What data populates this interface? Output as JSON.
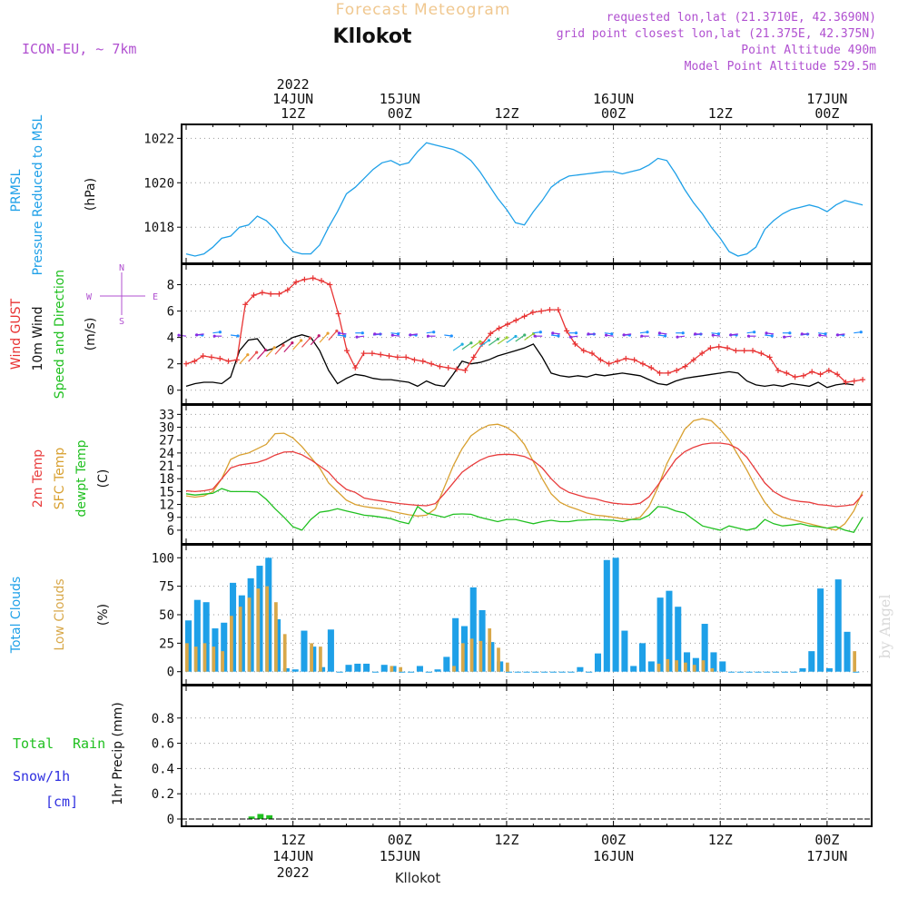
{
  "header": {
    "title": "Forecast Meteogram",
    "location": "Kllokot",
    "model": "ICON-EU, ~ 7km",
    "requested": "requested lon,lat (21.3710E, 42.3690N)",
    "gridpoint": "grid point closest lon,lat (21.375E, 42.375N)",
    "point_alt": "Point Altitude 490m",
    "model_alt": "Model Point Altitude 529.5m",
    "footer": "Kllokot",
    "watermark": "by Angel"
  },
  "colors": {
    "pressure": "#1ea0e8",
    "gust": "#e83232",
    "wind": "#000000",
    "temp": "#e83c3c",
    "sfc": "#d8a030",
    "dew": "#20c020",
    "total_clouds": "#1ea0e8",
    "low_clouds": "#d8a84a",
    "rain": "#20c020",
    "purple": "#b050d0",
    "snow": "#3030e0"
  },
  "time_axis": {
    "top_labels": [
      {
        "t": 12,
        "lines": [
          "2022",
          "14JUN",
          "12Z"
        ]
      },
      {
        "t": 24,
        "lines": [
          "15JUN",
          "00Z"
        ]
      },
      {
        "t": 36,
        "lines": [
          "12Z"
        ]
      },
      {
        "t": 48,
        "lines": [
          "16JUN",
          "00Z"
        ]
      },
      {
        "t": 60,
        "lines": [
          "12Z"
        ]
      },
      {
        "t": 72,
        "lines": [
          "17JUN",
          "00Z"
        ]
      }
    ],
    "bottom_labels": [
      {
        "t": 12,
        "lines": [
          "12Z",
          "14JUN",
          "2022"
        ]
      },
      {
        "t": 24,
        "lines": [
          "00Z",
          "15JUN"
        ]
      },
      {
        "t": 36,
        "lines": [
          "12Z"
        ]
      },
      {
        "t": 48,
        "lines": [
          "00Z",
          "16JUN"
        ]
      },
      {
        "t": 60,
        "lines": [
          "12Z"
        ]
      },
      {
        "t": 72,
        "lines": [
          "00Z",
          "17JUN"
        ]
      }
    ]
  },
  "panel_labels": {
    "pressure": [
      "PRMSL",
      "Pressure Reduced to MSL",
      "(hPa)"
    ],
    "wind": [
      "Wind GUST",
      "10m Wind",
      "Speed and Direction",
      "(m/s)"
    ],
    "compass": {
      "n": "N",
      "s": "S",
      "w": "W",
      "e": "E"
    },
    "temp": [
      "2m Temp",
      "SFC Temp",
      "dewpt Temp",
      "(C)"
    ],
    "clouds": [
      "Total Clouds",
      "Low Clouds",
      "(%)"
    ],
    "precip": [
      "Total",
      "Rain",
      "Snow/1h",
      "[cm]",
      "1hr Precip (mm)"
    ]
  },
  "chart_data": [
    {
      "type": "line",
      "name": "PRMSL",
      "ylabel": "(hPa)",
      "ylim": [
        1016.7,
        1022.3
      ],
      "yticks": [
        1018,
        1020,
        1022
      ],
      "x_hours": [
        0,
        1,
        2,
        3,
        4,
        5,
        6,
        7,
        8,
        9,
        10,
        11,
        12,
        13,
        14,
        15,
        16,
        17,
        18,
        19,
        20,
        21,
        22,
        23,
        24,
        25,
        26,
        27,
        28,
        29,
        30,
        31,
        32,
        33,
        34,
        35,
        36,
        37,
        38,
        39,
        40,
        41,
        42,
        43,
        44,
        45,
        46,
        47,
        48,
        49,
        50,
        51,
        52,
        53,
        54,
        55,
        56,
        57,
        58,
        59,
        60,
        61,
        62,
        63,
        64,
        65,
        66,
        67,
        68,
        69,
        70,
        71,
        72,
        73,
        74,
        75,
        76
      ],
      "values": [
        1016.8,
        1016.7,
        1016.8,
        1017.1,
        1017.5,
        1017.6,
        1018.0,
        1018.1,
        1018.5,
        1018.3,
        1017.9,
        1017.3,
        1016.9,
        1016.8,
        1016.8,
        1017.2,
        1018.0,
        1018.7,
        1019.5,
        1019.8,
        1020.2,
        1020.6,
        1020.9,
        1021.0,
        1020.8,
        1020.9,
        1021.4,
        1021.8,
        1021.7,
        1021.6,
        1021.5,
        1021.3,
        1021.0,
        1020.5,
        1019.9,
        1019.3,
        1018.8,
        1018.2,
        1018.1,
        1018.7,
        1019.2,
        1019.8,
        1020.1,
        1020.3,
        1020.35,
        1020.4,
        1020.45,
        1020.5,
        1020.5,
        1020.4,
        1020.5,
        1020.6,
        1020.8,
        1021.1,
        1021.0,
        1020.4,
        1019.7,
        1019.1,
        1018.6,
        1018.0,
        1017.5,
        1016.9,
        1016.7,
        1016.8,
        1017.1,
        1017.9,
        1018.3,
        1018.6,
        1018.8,
        1018.9,
        1019.0,
        1018.9,
        1018.7,
        1019.0,
        1019.2,
        1019.1,
        1019.0
      ]
    },
    {
      "type": "line",
      "name": "Wind",
      "ylabel": "(m/s)",
      "ylim": [
        -0.5,
        9.0
      ],
      "yticks": [
        0,
        2,
        4,
        6,
        8
      ],
      "gust": [
        2.0,
        2.2,
        2.6,
        2.5,
        2.4,
        2.2,
        2.3,
        6.5,
        7.2,
        7.4,
        7.3,
        7.3,
        7.6,
        8.2,
        8.4,
        8.5,
        8.3,
        8.0,
        5.8,
        3.0,
        1.7,
        2.8,
        2.8,
        2.7,
        2.6,
        2.5,
        2.5,
        2.3,
        2.2,
        2.0,
        1.8,
        1.7,
        1.6,
        1.5,
        2.5,
        3.5,
        4.3,
        4.7,
        5.0,
        5.3,
        5.6,
        5.9,
        6.0,
        6.1,
        6.1,
        4.5,
        3.5,
        3.0,
        2.8,
        2.3,
        2.0,
        2.2,
        2.4,
        2.3,
        2.0,
        1.7,
        1.3,
        1.3,
        1.5,
        1.8,
        2.3,
        2.8,
        3.2,
        3.3,
        3.2,
        3.0,
        3.0,
        3.0,
        2.8,
        2.5,
        1.5,
        1.3,
        1.0,
        1.1,
        1.4,
        1.2,
        1.5,
        1.2,
        0.6,
        0.7,
        0.8
      ],
      "wind": [
        0.3,
        0.5,
        0.6,
        0.6,
        0.5,
        1.0,
        3.0,
        3.8,
        3.9,
        3.0,
        3.2,
        3.6,
        4.0,
        4.2,
        4.0,
        3.0,
        1.5,
        0.5,
        0.9,
        1.2,
        1.1,
        0.9,
        0.8,
        0.8,
        0.7,
        0.6,
        0.3,
        0.7,
        0.4,
        0.3,
        1.2,
        2.2,
        2.0,
        2.1,
        2.3,
        2.6,
        2.8,
        3.0,
        3.2,
        3.5,
        2.5,
        1.3,
        1.1,
        1.0,
        1.1,
        1.0,
        1.2,
        1.1,
        1.2,
        1.3,
        1.2,
        1.1,
        0.8,
        0.5,
        0.4,
        0.7,
        0.9,
        1.0,
        1.1,
        1.2,
        1.3,
        1.4,
        1.3,
        0.7,
        0.4,
        0.3,
        0.4,
        0.3,
        0.5,
        0.4,
        0.3,
        0.6,
        0.2,
        0.4,
        0.5,
        0.4
      ],
      "x_hours_gust_step": 0.95
    },
    {
      "type": "line",
      "name": "Temperature",
      "ylabel": "(C)",
      "ylim": [
        4.5,
        33.5
      ],
      "yticks": [
        6,
        9,
        12,
        15,
        18,
        21,
        24,
        27,
        30,
        33
      ],
      "t2m": [
        15.2,
        15.0,
        15.2,
        15.6,
        18.0,
        20.5,
        21.2,
        21.5,
        21.8,
        22.5,
        23.5,
        24.2,
        24.3,
        23.6,
        22.4,
        21.0,
        19.5,
        17.2,
        15.5,
        14.8,
        13.5,
        13.1,
        12.8,
        12.5,
        12.2,
        12.0,
        11.8,
        11.7,
        12.2,
        14.5,
        17.0,
        19.5,
        21.0,
        22.3,
        23.2,
        23.6,
        23.7,
        23.6,
        23.2,
        22.2,
        20.5,
        18.0,
        16.0,
        14.8,
        14.2,
        13.6,
        13.3,
        12.7,
        12.3,
        12.1,
        12.0,
        12.3,
        13.8,
        16.5,
        19.5,
        22.5,
        24.3,
        25.3,
        26.0,
        26.3,
        26.3,
        26.0,
        25.0,
        23.0,
        20.0,
        17.0,
        15.0,
        13.8,
        13.0,
        12.7,
        12.5,
        12.0,
        11.8,
        11.5,
        11.7,
        12.0,
        14.3
      ],
      "sfc": [
        14.0,
        13.7,
        14.0,
        15.0,
        18.0,
        22.5,
        23.5,
        24.0,
        25.0,
        26.0,
        28.5,
        28.6,
        27.5,
        25.5,
        23.0,
        20.5,
        17.0,
        15.0,
        13.0,
        12.0,
        11.5,
        11.2,
        11.0,
        10.5,
        10.0,
        9.6,
        9.3,
        9.5,
        11.0,
        16.0,
        21.0,
        25.0,
        28.0,
        29.5,
        30.5,
        30.7,
        30.0,
        28.5,
        26.0,
        22.0,
        18.0,
        14.5,
        12.5,
        11.5,
        10.8,
        10.0,
        9.5,
        9.3,
        9.0,
        8.7,
        8.5,
        9.0,
        11.5,
        16.0,
        21.5,
        25.5,
        29.5,
        31.5,
        32.0,
        31.5,
        29.5,
        27.0,
        23.5,
        20.0,
        16.0,
        12.5,
        10.0,
        9.0,
        8.5,
        8.0,
        7.5,
        7.0,
        6.5,
        6.0,
        7.5,
        10.5,
        15.0
      ],
      "dew": [
        14.5,
        14.2,
        14.4,
        14.6,
        15.7,
        15.0,
        15.0,
        15.0,
        14.9,
        13.2,
        11.0,
        9.0,
        6.8,
        6.0,
        8.5,
        10.2,
        10.5,
        11.0,
        10.5,
        10.0,
        9.5,
        9.3,
        9.0,
        8.7,
        8.0,
        7.5,
        11.5,
        10.0,
        9.5,
        9.0,
        9.7,
        9.8,
        9.7,
        9.0,
        8.5,
        8.0,
        8.5,
        8.5,
        8.0,
        7.5,
        8.0,
        8.3,
        8.0,
        8.0,
        8.3,
        8.4,
        8.5,
        8.4,
        8.3,
        8.0,
        8.5,
        8.5,
        9.5,
        11.5,
        11.3,
        10.5,
        10.0,
        8.5,
        7.0,
        6.5,
        6.0,
        7.0,
        6.5,
        6.0,
        6.5,
        8.5,
        7.5,
        7.0,
        7.2,
        7.5,
        7.0,
        6.8,
        6.5,
        6.8,
        6.0,
        5.5,
        9.0
      ]
    },
    {
      "type": "bar",
      "name": "Clouds",
      "ylabel": "(%)",
      "ylim": [
        -5,
        105
      ],
      "yticks": [
        0,
        25,
        50,
        75,
        100
      ],
      "total": [
        45,
        63,
        61,
        38,
        43,
        78,
        67,
        82,
        93,
        100,
        46,
        3,
        2,
        36,
        22,
        4,
        37,
        0,
        6,
        7,
        7,
        0,
        6,
        5,
        0,
        0,
        5,
        0,
        2,
        13,
        47,
        40,
        74,
        54,
        26,
        9,
        0,
        0,
        0,
        0,
        0,
        0,
        0,
        0,
        4,
        0,
        16,
        98,
        100,
        36,
        5,
        25,
        9,
        65,
        71,
        57,
        17,
        12,
        42,
        17,
        9,
        0,
        0,
        0,
        0,
        0,
        0,
        0,
        0,
        3,
        18,
        73,
        3,
        81,
        35,
        0
      ],
      "low": [
        25,
        22,
        25,
        22,
        18,
        49,
        57,
        65,
        73,
        75,
        61,
        33,
        0,
        0,
        25,
        22,
        0,
        0,
        0,
        0,
        0,
        0,
        0,
        5,
        4,
        0,
        0,
        0,
        0,
        0,
        5,
        25,
        29,
        27,
        38,
        21,
        8,
        0,
        0,
        0,
        0,
        0,
        0,
        0,
        0,
        0,
        0,
        0,
        0,
        0,
        0,
        0,
        0,
        7,
        11,
        10,
        8,
        6,
        10,
        3,
        0,
        0,
        0,
        0,
        0,
        0,
        0,
        0,
        0,
        0,
        0,
        0,
        0,
        0,
        0,
        18
      ]
    },
    {
      "type": "bar",
      "name": "Precipitation",
      "ylabel": "1hr Precip (mm)",
      "ylim": [
        0,
        1.0
      ],
      "yticks": [
        0,
        0.2,
        0.4,
        0.6,
        0.8
      ],
      "rain": [
        {
          "h": 7,
          "v": 0.02
        },
        {
          "h": 8,
          "v": 0.04
        },
        {
          "h": 9,
          "v": 0.03
        }
      ]
    }
  ]
}
